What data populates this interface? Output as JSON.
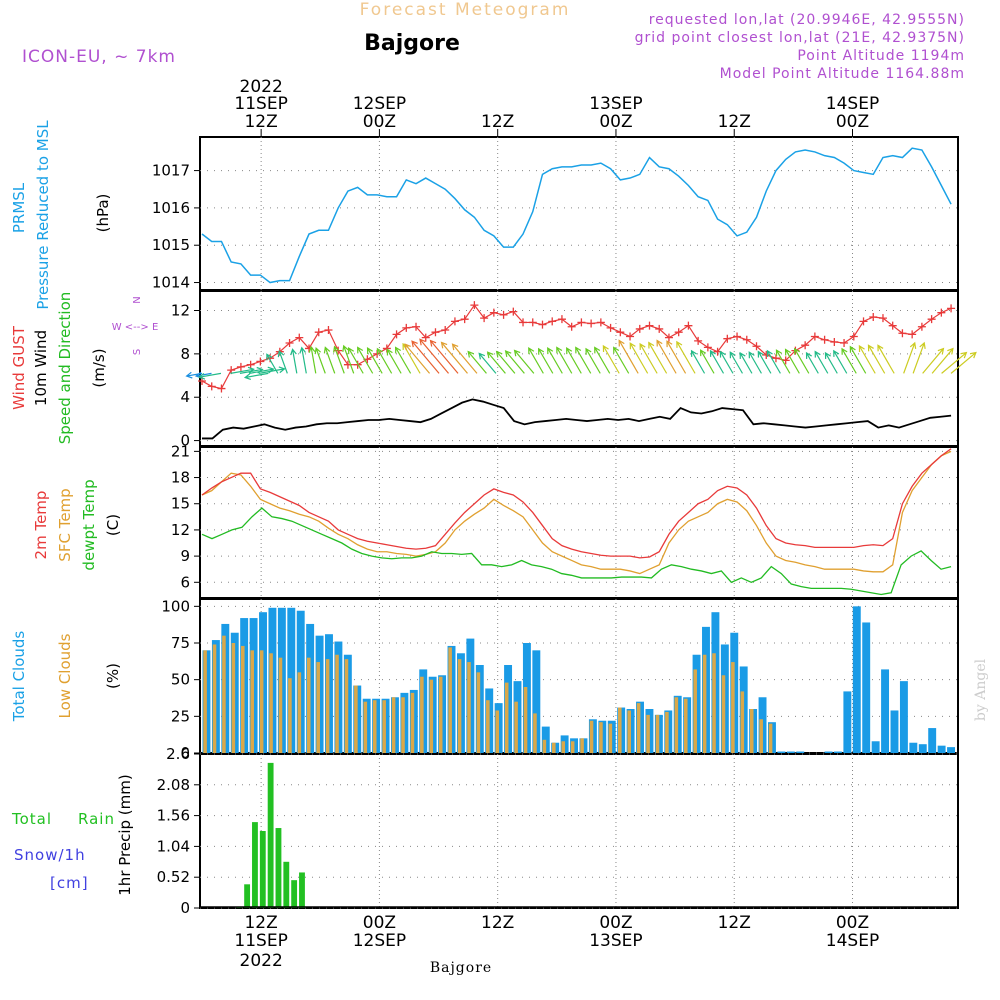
{
  "header": {
    "product": "Forecast Meteogram",
    "location": "Bajgore",
    "model": "ICON-EU, ~ 7km",
    "requested": "requested lon,lat (20.9946E, 42.9555N)",
    "gridpoint": "grid point closest lon,lat (21E, 42.9375N)",
    "point_alt": "Point Altitude 1194m",
    "model_alt": "Model Point Altitude 1164.88m",
    "footer_location": "Bajgore",
    "watermark": "by Angel"
  },
  "colors": {
    "prmsl": "#1aa1e6",
    "gust": "#e83a3a",
    "wind": "#000000",
    "dir": "#22bb22",
    "t2m": "#e83a3a",
    "sfc": "#e0a030",
    "dewpt": "#22bb22",
    "total_clouds": "#1a9be6",
    "low_clouds": "#d9a84a",
    "rain": "#22c022",
    "snow": "#4040e0",
    "purple": "#b050d0",
    "title_orange": "#f0c890"
  },
  "chart_data": [
    {
      "type": "line",
      "id": "prmsl",
      "title": "PRMSL Pressure Reduced to MSL",
      "ylabel": "(hPa)",
      "ylim": [
        1013.8,
        1017.9
      ],
      "yticks": [
        1014,
        1015,
        1016,
        1017
      ],
      "x_hours": "1-hourly, hours since 2022-09-11 06Z",
      "values": [
        1015.3,
        1015.1,
        1015.1,
        1014.55,
        1014.5,
        1014.2,
        1014.2,
        1014.0,
        1014.05,
        1014.05,
        1014.7,
        1015.3,
        1015.4,
        1015.4,
        1016.0,
        1016.45,
        1016.55,
        1016.35,
        1016.35,
        1016.3,
        1016.3,
        1016.75,
        1016.65,
        1016.8,
        1016.65,
        1016.5,
        1016.25,
        1015.95,
        1015.75,
        1015.4,
        1015.25,
        1014.95,
        1014.95,
        1015.3,
        1015.9,
        1016.9,
        1017.05,
        1017.1,
        1017.1,
        1017.15,
        1017.15,
        1017.2,
        1017.05,
        1016.75,
        1016.8,
        1016.9,
        1017.35,
        1017.1,
        1017.05,
        1016.85,
        1016.6,
        1016.3,
        1016.2,
        1015.7,
        1015.55,
        1015.25,
        1015.35,
        1015.75,
        1016.45,
        1017.0,
        1017.3,
        1017.5,
        1017.55,
        1017.5,
        1017.4,
        1017.35,
        1017.2,
        1017.0,
        1016.95,
        1016.9,
        1017.35,
        1017.4,
        1017.35,
        1017.6,
        1017.55,
        1017.1,
        1016.6,
        1016.1
      ]
    },
    {
      "type": "line",
      "id": "wind",
      "title": "Wind GUST / 10m Wind Speed and Direction",
      "ylabel": "(m/s)",
      "ylim": [
        -0.5,
        13.8
      ],
      "yticks": [
        0,
        4,
        8,
        12
      ],
      "compass": [
        "N",
        "W <--> E",
        "S"
      ],
      "gust": [
        5.5,
        5.0,
        4.8,
        6.5,
        6.8,
        7.0,
        7.3,
        7.6,
        8.2,
        9.0,
        9.5,
        8.5,
        10.0,
        10.2,
        8.3,
        7.0,
        7.0,
        7.5,
        8.0,
        8.5,
        9.8,
        10.4,
        10.5,
        9.5,
        10.0,
        10.2,
        11.0,
        11.2,
        12.5,
        11.3,
        11.8,
        11.6,
        11.9,
        10.9,
        10.9,
        10.7,
        11.0,
        11.2,
        10.5,
        10.9,
        10.8,
        10.9,
        10.4,
        10.0,
        9.6,
        10.3,
        10.6,
        10.3,
        9.5,
        10.0,
        10.6,
        9.2,
        8.6,
        8.2,
        9.4,
        9.6,
        9.3,
        8.7,
        7.9,
        7.6,
        7.4,
        8.3,
        8.8,
        9.6,
        9.3,
        9.1,
        9.0,
        9.6,
        11.0,
        11.4,
        11.3,
        10.6,
        9.9,
        9.8,
        10.5,
        11.2,
        11.8,
        12.2
      ],
      "speed": [
        0.2,
        0.2,
        1.0,
        1.2,
        1.1,
        1.3,
        1.5,
        1.2,
        1.0,
        1.2,
        1.3,
        1.5,
        1.6,
        1.6,
        1.7,
        1.8,
        1.9,
        1.9,
        2.0,
        1.9,
        1.8,
        1.7,
        2.0,
        2.5,
        3.0,
        3.5,
        3.8,
        3.6,
        3.3,
        3.0,
        1.8,
        1.5,
        1.7,
        1.8,
        1.9,
        2.0,
        1.9,
        1.8,
        1.9,
        2.0,
        1.9,
        2.0,
        1.8,
        2.0,
        2.2,
        2.0,
        3.0,
        2.6,
        2.5,
        2.7,
        3.0,
        2.9,
        2.8,
        1.5,
        1.6,
        1.5,
        1.4,
        1.3,
        1.2,
        1.3,
        1.4,
        1.5,
        1.6,
        1.7,
        1.8,
        1.2,
        1.4,
        1.2,
        1.5,
        1.8,
        2.1,
        2.2,
        2.3
      ],
      "arrows_from_deg": [
        80,
        80,
        80,
        260,
        260,
        260,
        260,
        80,
        150,
        160,
        170,
        170,
        170,
        160,
        160,
        160,
        160,
        150,
        150,
        150,
        150,
        150,
        150,
        150,
        140,
        140,
        140,
        140,
        140,
        140,
        140,
        140,
        140,
        140,
        140,
        140,
        150,
        150,
        150,
        150,
        150,
        150,
        150,
        150,
        150,
        150,
        150,
        150,
        150,
        150,
        150,
        150,
        150,
        150,
        150,
        150,
        150,
        150,
        150,
        150,
        150,
        150,
        150,
        150,
        150,
        150,
        150,
        150,
        150,
        150,
        150,
        150,
        150,
        150,
        200,
        200,
        220,
        220,
        230,
        230
      ]
    },
    {
      "type": "line",
      "id": "temp",
      "title": "2m Temp / SFC Temp / dewpt Temp",
      "ylabel": "(C)",
      "ylim": [
        4.2,
        21.5
      ],
      "yticks": [
        6,
        9,
        12,
        15,
        18,
        21
      ],
      "t2m": [
        16.0,
        16.8,
        17.5,
        18.0,
        18.5,
        18.5,
        16.7,
        16.3,
        15.8,
        15.3,
        14.8,
        14.0,
        13.5,
        13.0,
        12.0,
        11.5,
        11.0,
        10.7,
        10.5,
        10.3,
        10.1,
        9.9,
        9.8,
        9.9,
        10.2,
        11.5,
        12.8,
        14.0,
        15.0,
        16.0,
        16.7,
        16.3,
        16.0,
        15.2,
        14.0,
        12.5,
        11.0,
        10.2,
        9.8,
        9.5,
        9.3,
        9.1,
        9.0,
        9.0,
        9.0,
        8.8,
        8.9,
        9.5,
        11.5,
        13.0,
        14.0,
        15.0,
        15.5,
        16.5,
        17.0,
        16.8,
        16.0,
        14.5,
        12.5,
        11.0,
        10.5,
        10.3,
        10.2,
        10.0,
        10.0,
        10.0,
        10.0,
        10.0,
        10.2,
        10.3,
        10.2,
        11.0,
        15.0,
        17.0,
        18.5,
        19.5,
        20.5,
        21.3
      ],
      "sfc": [
        16.0,
        16.5,
        17.5,
        18.5,
        18.3,
        17.0,
        15.5,
        15.0,
        14.5,
        14.2,
        13.8,
        13.5,
        13.0,
        12.2,
        11.5,
        11.0,
        10.3,
        9.8,
        9.5,
        9.5,
        9.3,
        9.2,
        9.0,
        9.2,
        9.5,
        10.5,
        12.0,
        13.0,
        13.8,
        14.5,
        15.5,
        14.8,
        14.2,
        13.5,
        12.0,
        10.5,
        9.5,
        9.0,
        8.5,
        8.0,
        7.8,
        7.5,
        7.5,
        7.5,
        7.3,
        7.0,
        7.5,
        8.0,
        10.5,
        12.0,
        13.0,
        13.5,
        14.0,
        15.0,
        15.5,
        15.2,
        14.2,
        12.5,
        10.5,
        9.0,
        8.5,
        8.3,
        8.0,
        7.8,
        7.5,
        7.5,
        7.5,
        7.5,
        7.3,
        7.2,
        7.2,
        8.0,
        14.0,
        16.5,
        18.0,
        19.5,
        20.5,
        21.0
      ],
      "dewpt": [
        11.5,
        11.0,
        11.5,
        12.0,
        12.3,
        13.5,
        14.5,
        13.5,
        13.3,
        13.0,
        12.5,
        12.0,
        11.5,
        11.0,
        10.5,
        9.8,
        9.3,
        9.0,
        8.8,
        8.7,
        8.8,
        8.8,
        9.0,
        9.5,
        9.3,
        9.3,
        9.2,
        9.3,
        8.0,
        8.0,
        7.8,
        8.0,
        8.5,
        8.0,
        7.8,
        7.5,
        7.0,
        6.8,
        6.5,
        6.5,
        6.5,
        6.5,
        6.6,
        6.6,
        6.6,
        6.5,
        7.5,
        8.0,
        7.8,
        7.5,
        7.3,
        7.0,
        7.3,
        6.0,
        6.5,
        6.0,
        6.5,
        7.8,
        7.0,
        5.8,
        5.5,
        5.3,
        5.3,
        5.3,
        5.3,
        5.2,
        5.0,
        4.8,
        4.6,
        4.8,
        8.0,
        9.0,
        9.6,
        8.5,
        7.5,
        7.8
      ]
    },
    {
      "type": "bar",
      "id": "clouds",
      "title": "Total Clouds / Low Clouds",
      "ylabel": "(%)",
      "ylim": [
        0,
        105
      ],
      "yticks": [
        0,
        25,
        50,
        75,
        100
      ],
      "total": [
        70,
        77,
        88,
        82,
        92,
        92,
        96,
        99,
        99,
        99,
        97,
        88,
        80,
        81,
        76,
        67,
        46,
        37,
        37,
        37,
        38,
        41,
        43,
        57,
        52,
        53,
        73,
        68,
        78,
        60,
        44,
        34,
        60,
        49,
        75,
        70,
        18,
        7,
        12,
        10,
        10,
        23,
        22,
        22,
        31,
        30,
        35,
        30,
        26,
        29,
        39,
        38,
        67,
        86,
        96,
        74,
        82,
        59,
        30,
        38,
        21,
        1,
        1,
        1,
        0,
        0,
        1,
        1,
        42,
        100,
        89,
        8,
        57,
        29,
        49,
        7,
        6,
        17,
        5,
        4
      ],
      "low": [
        70,
        74,
        80,
        75,
        73,
        70,
        70,
        68,
        65,
        51,
        55,
        65,
        62,
        64,
        67,
        64,
        46,
        35,
        36,
        36,
        38,
        38,
        41,
        52,
        50,
        52,
        72,
        64,
        62,
        55,
        36,
        29,
        48,
        35,
        45,
        27,
        9,
        7,
        8,
        8,
        10,
        22,
        21,
        20,
        31,
        29,
        34,
        26,
        26,
        28,
        38,
        37,
        57,
        67,
        68,
        53,
        62,
        42,
        30,
        23,
        20,
        0,
        0,
        0,
        0,
        0,
        0,
        0,
        0,
        0,
        0,
        0,
        0,
        0,
        0,
        0,
        0,
        0,
        0,
        0
      ]
    },
    {
      "type": "bar",
      "id": "precip",
      "title": "Total Rain / Snow/1h [cm]",
      "ylabel": "1hr Precip (mm)",
      "ylim": [
        0,
        2.6
      ],
      "yticks": [
        "0",
        "0.52",
        "1.04",
        "1.56",
        "2.08",
        "2.6"
      ],
      "rain": [
        0,
        0,
        0,
        0,
        0.02,
        0.4,
        1.45,
        1.3,
        2.45,
        1.35,
        0.78,
        0.47,
        0.6,
        0,
        0,
        0,
        0,
        0,
        0,
        0,
        0,
        0,
        0,
        0,
        0,
        0,
        0,
        0,
        0,
        0,
        0,
        0,
        0,
        0,
        0,
        0,
        0,
        0,
        0,
        0,
        0,
        0,
        0,
        0,
        0,
        0,
        0,
        0,
        0,
        0,
        0,
        0,
        0,
        0,
        0,
        0,
        0,
        0,
        0,
        0,
        0,
        0,
        0,
        0,
        0,
        0,
        0,
        0,
        0,
        0,
        0,
        0,
        0,
        0,
        0,
        0,
        0,
        0,
        0,
        0,
        0,
        0,
        0,
        0,
        0,
        0,
        0,
        0,
        0,
        0,
        0,
        0,
        0,
        0,
        0,
        0,
        0,
        0,
        0,
        0,
        0
      ],
      "legend": [
        "Total",
        "Rain",
        "Snow/1h",
        "[cm]"
      ]
    }
  ],
  "time_axis": {
    "top": [
      {
        "h": 6,
        "line1": "2022",
        "line2": "11SEP",
        "line3": "12Z"
      },
      {
        "h": 18,
        "line2": "12SEP",
        "line3": "00Z"
      },
      {
        "h": 30,
        "line3": "12Z"
      },
      {
        "h": 42,
        "line2": "13SEP",
        "line3": "00Z"
      },
      {
        "h": 54,
        "line3": "12Z"
      },
      {
        "h": 66,
        "line2": "14SEP",
        "line3": "00Z"
      }
    ],
    "bottom": [
      {
        "h": 6,
        "line1": "12Z",
        "line2": "11SEP",
        "line3": "2022"
      },
      {
        "h": 18,
        "line1": "00Z",
        "line2": "12SEP"
      },
      {
        "h": 30,
        "line1": "12Z"
      },
      {
        "h": 42,
        "line1": "00Z",
        "line2": "13SEP"
      },
      {
        "h": 54,
        "line1": "12Z"
      },
      {
        "h": 66,
        "line1": "00Z",
        "line2": "14SEP"
      }
    ]
  },
  "labels": {
    "p1": [
      "PRMSL",
      "Pressure Reduced to MSL",
      "(hPa)"
    ],
    "p2": [
      "Wind GUST",
      "10m Wind",
      "Speed and Direction",
      "(m/s)"
    ],
    "p3": [
      "2m Temp",
      "SFC Temp",
      "dewpt Temp",
      "(C)"
    ],
    "p4": [
      "Total Clouds",
      "Low Clouds",
      "(%)"
    ]
  }
}
